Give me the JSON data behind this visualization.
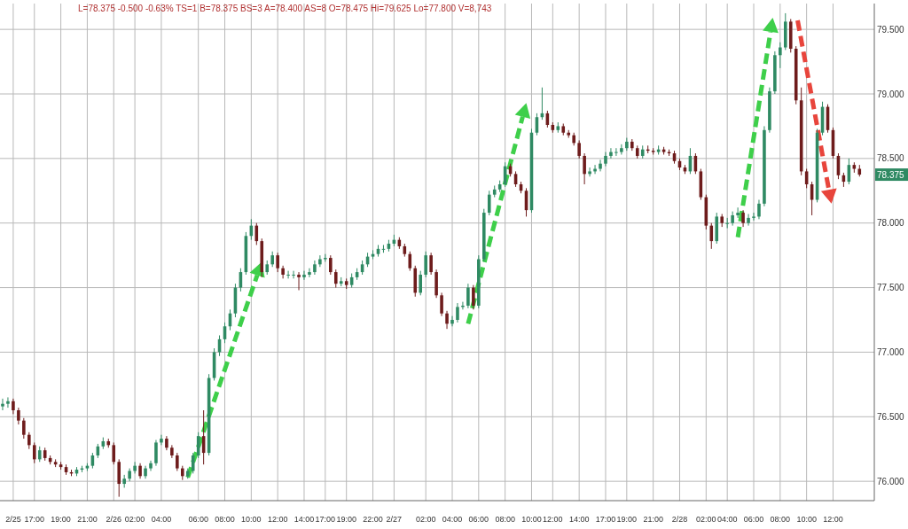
{
  "chart_data": {
    "type": "candlestick",
    "categories": [
      null,
      null,
      "2/25",
      null,
      null,
      null,
      "17:00",
      null,
      null,
      null,
      null,
      "19:00",
      null,
      null,
      null,
      null,
      "21:00",
      null,
      null,
      null,
      null,
      "2/26",
      null,
      null,
      null,
      "02:00",
      null,
      null,
      null,
      null,
      "04:00",
      null,
      null,
      null,
      null,
      null,
      null,
      "06:00",
      null,
      null,
      null,
      null,
      "08:00",
      null,
      null,
      null,
      null,
      "10:00",
      null,
      null,
      null,
      null,
      "12:00",
      null,
      null,
      null,
      null,
      "14:00",
      null,
      null,
      null,
      "17:00",
      null,
      null,
      null,
      "19:00",
      null,
      null,
      null,
      null,
      "22:00",
      null,
      null,
      null,
      "2/27",
      null,
      null,
      null,
      null,
      null,
      "02:00",
      null,
      null,
      null,
      null,
      "04:00",
      null,
      null,
      null,
      null,
      "06:00",
      null,
      null,
      null,
      null,
      "08:00",
      null,
      null,
      null,
      null,
      "10:00",
      null,
      null,
      null,
      "12:00",
      null,
      null,
      null,
      null,
      "14:00",
      null,
      null,
      null,
      null,
      "17:00",
      null,
      null,
      null,
      "19:00",
      null,
      null,
      null,
      null,
      "21:00",
      null,
      null,
      null,
      null,
      "2/28",
      null,
      null,
      null,
      null,
      "02:00",
      null,
      null,
      null,
      "04:00",
      null,
      null,
      null,
      null,
      "06:00",
      null,
      null,
      null,
      null,
      "08:00",
      null,
      null,
      null,
      null,
      "10:00",
      null,
      null,
      null,
      null,
      "12:00",
      null,
      null,
      null,
      null,
      null
    ],
    "ohlc": [
      [
        76.58,
        76.64,
        76.55,
        76.6
      ],
      [
        76.6,
        76.65,
        76.57,
        76.62
      ],
      [
        76.62,
        76.64,
        76.52,
        76.55
      ],
      [
        76.55,
        76.57,
        76.44,
        76.47
      ],
      [
        76.47,
        76.49,
        76.33,
        76.36
      ],
      [
        76.36,
        76.38,
        76.25,
        76.28
      ],
      [
        76.28,
        76.3,
        76.14,
        76.17
      ],
      [
        76.17,
        76.27,
        76.15,
        76.24
      ],
      [
        76.24,
        76.26,
        76.16,
        76.18
      ],
      [
        76.18,
        76.2,
        76.13,
        76.15
      ],
      [
        76.15,
        76.17,
        76.11,
        76.13
      ],
      [
        76.13,
        76.15,
        76.09,
        76.11
      ],
      [
        76.11,
        76.13,
        76.05,
        76.07
      ],
      [
        76.07,
        76.09,
        76.04,
        76.06
      ],
      [
        76.06,
        76.11,
        76.04,
        76.09
      ],
      [
        76.09,
        76.12,
        76.07,
        76.1
      ],
      [
        76.1,
        76.14,
        76.08,
        76.12
      ],
      [
        76.12,
        76.22,
        76.1,
        76.2
      ],
      [
        76.2,
        76.29,
        76.18,
        76.27
      ],
      [
        76.27,
        76.34,
        76.25,
        76.31
      ],
      [
        76.31,
        76.33,
        76.26,
        76.28
      ],
      [
        76.28,
        76.3,
        76.13,
        76.15
      ],
      [
        76.15,
        76.17,
        75.88,
        75.98
      ],
      [
        75.98,
        76.05,
        75.95,
        76.02
      ],
      [
        76.02,
        76.1,
        76.0,
        76.08
      ],
      [
        76.08,
        76.15,
        76.06,
        76.12
      ],
      [
        76.12,
        76.14,
        76.02,
        76.04
      ],
      [
        76.04,
        76.12,
        76.02,
        76.1
      ],
      [
        76.1,
        76.16,
        76.08,
        76.14
      ],
      [
        76.14,
        76.32,
        76.12,
        76.3
      ],
      [
        76.3,
        76.36,
        76.28,
        76.33
      ],
      [
        76.33,
        76.35,
        76.24,
        76.26
      ],
      [
        76.26,
        76.28,
        76.18,
        76.2
      ],
      [
        76.2,
        76.22,
        76.08,
        76.1
      ],
      [
        76.1,
        76.12,
        76.01,
        76.04
      ],
      [
        76.04,
        76.1,
        76.02,
        76.08
      ],
      [
        76.08,
        76.22,
        76.06,
        76.2
      ],
      [
        76.2,
        76.38,
        76.18,
        76.35
      ],
      [
        76.35,
        76.55,
        76.13,
        76.22
      ],
      [
        76.22,
        76.83,
        76.2,
        76.8
      ],
      [
        76.8,
        77.03,
        76.78,
        77.0
      ],
      [
        77.0,
        77.13,
        76.97,
        77.1
      ],
      [
        77.1,
        77.23,
        77.07,
        77.2
      ],
      [
        77.2,
        77.33,
        77.17,
        77.3
      ],
      [
        77.3,
        77.53,
        77.27,
        77.5
      ],
      [
        77.5,
        77.65,
        77.47,
        77.62
      ],
      [
        77.62,
        77.93,
        77.6,
        77.9
      ],
      [
        77.9,
        78.03,
        77.87,
        77.98
      ],
      [
        77.98,
        78.0,
        77.83,
        77.86
      ],
      [
        77.86,
        77.88,
        77.58,
        77.62
      ],
      [
        77.62,
        77.71,
        77.6,
        77.68
      ],
      [
        77.68,
        77.78,
        77.66,
        77.75
      ],
      [
        77.75,
        77.77,
        77.62,
        77.65
      ],
      [
        77.65,
        77.67,
        77.57,
        77.6
      ],
      [
        77.6,
        77.63,
        77.57,
        77.6
      ],
      [
        77.6,
        77.63,
        77.57,
        77.6
      ],
      [
        77.6,
        77.62,
        77.48,
        77.58
      ],
      [
        77.58,
        77.63,
        77.56,
        77.6
      ],
      [
        77.6,
        77.65,
        77.58,
        77.62
      ],
      [
        77.62,
        77.71,
        77.6,
        77.68
      ],
      [
        77.68,
        77.75,
        77.66,
        77.72
      ],
      [
        77.72,
        77.76,
        77.7,
        77.73
      ],
      [
        77.73,
        77.75,
        77.6,
        77.62
      ],
      [
        77.62,
        77.64,
        77.5,
        77.53
      ],
      [
        77.53,
        77.58,
        77.51,
        77.55
      ],
      [
        77.55,
        77.57,
        77.49,
        77.52
      ],
      [
        77.52,
        77.61,
        77.5,
        77.58
      ],
      [
        77.58,
        77.65,
        77.56,
        77.62
      ],
      [
        77.62,
        77.71,
        77.6,
        77.68
      ],
      [
        77.68,
        77.77,
        77.66,
        77.74
      ],
      [
        77.74,
        77.79,
        77.72,
        77.76
      ],
      [
        77.76,
        77.83,
        77.74,
        77.8
      ],
      [
        77.8,
        77.83,
        77.77,
        77.8
      ],
      [
        77.8,
        77.87,
        77.78,
        77.84
      ],
      [
        77.84,
        77.91,
        77.82,
        77.87
      ],
      [
        77.87,
        77.89,
        77.8,
        77.82
      ],
      [
        77.82,
        77.84,
        77.74,
        77.76
      ],
      [
        77.76,
        77.78,
        77.63,
        77.65
      ],
      [
        77.65,
        77.67,
        77.43,
        77.46
      ],
      [
        77.46,
        77.63,
        77.44,
        77.6
      ],
      [
        77.6,
        77.78,
        77.58,
        77.75
      ],
      [
        77.75,
        77.77,
        77.6,
        77.62
      ],
      [
        77.62,
        77.64,
        77.42,
        77.44
      ],
      [
        77.44,
        77.46,
        77.28,
        77.3
      ],
      [
        77.3,
        77.32,
        77.18,
        77.22
      ],
      [
        77.22,
        77.28,
        77.2,
        77.25
      ],
      [
        77.25,
        77.38,
        77.23,
        77.35
      ],
      [
        77.35,
        77.39,
        77.33,
        77.36
      ],
      [
        77.36,
        77.53,
        77.34,
        77.5
      ],
      [
        77.5,
        77.52,
        77.33,
        77.36
      ],
      [
        77.36,
        77.75,
        77.34,
        77.72
      ],
      [
        77.72,
        78.11,
        77.7,
        78.08
      ],
      [
        78.08,
        78.25,
        78.06,
        78.22
      ],
      [
        78.22,
        78.29,
        78.2,
        78.26
      ],
      [
        78.26,
        78.33,
        78.24,
        78.3
      ],
      [
        78.3,
        78.47,
        78.28,
        78.44
      ],
      [
        78.44,
        78.46,
        78.36,
        78.38
      ],
      [
        78.38,
        78.4,
        78.28,
        78.3
      ],
      [
        78.3,
        78.32,
        78.23,
        78.25
      ],
      [
        78.25,
        78.27,
        78.05,
        78.1
      ],
      [
        78.1,
        78.73,
        78.08,
        78.7
      ],
      [
        78.7,
        78.85,
        78.68,
        78.82
      ],
      [
        78.82,
        79.05,
        78.8,
        78.85
      ],
      [
        78.85,
        78.87,
        78.74,
        78.76
      ],
      [
        78.76,
        78.78,
        78.7,
        78.72
      ],
      [
        78.72,
        78.78,
        78.7,
        78.75
      ],
      [
        78.75,
        78.77,
        78.68,
        78.7
      ],
      [
        78.7,
        78.72,
        78.66,
        78.68
      ],
      [
        78.68,
        78.7,
        78.6,
        78.62
      ],
      [
        78.62,
        78.64,
        78.5,
        78.52
      ],
      [
        78.52,
        78.54,
        78.3,
        78.38
      ],
      [
        78.38,
        78.43,
        78.36,
        78.4
      ],
      [
        78.4,
        78.45,
        78.38,
        78.42
      ],
      [
        78.42,
        78.49,
        78.4,
        78.46
      ],
      [
        78.46,
        78.55,
        78.44,
        78.52
      ],
      [
        78.52,
        78.58,
        78.5,
        78.55
      ],
      [
        78.55,
        78.58,
        78.52,
        78.55
      ],
      [
        78.55,
        78.61,
        78.53,
        78.58
      ],
      [
        78.58,
        78.66,
        78.56,
        78.63
      ],
      [
        78.63,
        78.65,
        78.56,
        78.58
      ],
      [
        78.58,
        78.6,
        78.5,
        78.52
      ],
      [
        78.52,
        78.6,
        78.5,
        78.57
      ],
      [
        78.57,
        78.6,
        78.54,
        78.56
      ],
      [
        78.56,
        78.58,
        78.53,
        78.55
      ],
      [
        78.55,
        78.6,
        78.53,
        78.57
      ],
      [
        78.57,
        78.59,
        78.53,
        78.55
      ],
      [
        78.55,
        78.57,
        78.52,
        78.54
      ],
      [
        78.54,
        78.56,
        78.46,
        78.48
      ],
      [
        78.48,
        78.5,
        78.41,
        78.43
      ],
      [
        78.43,
        78.45,
        78.38,
        78.4
      ],
      [
        78.4,
        78.58,
        78.38,
        78.52
      ],
      [
        78.52,
        78.54,
        78.38,
        78.4
      ],
      [
        78.4,
        78.42,
        78.18,
        78.2
      ],
      [
        78.2,
        78.22,
        77.95,
        77.98
      ],
      [
        77.98,
        78.0,
        77.8,
        77.86
      ],
      [
        77.86,
        78.08,
        77.84,
        78.05
      ],
      [
        78.05,
        78.07,
        77.97,
        78.0
      ],
      [
        78.0,
        78.04,
        77.96,
        78.0
      ],
      [
        78.0,
        78.09,
        77.98,
        78.06
      ],
      [
        78.06,
        78.12,
        78.04,
        78.08
      ],
      [
        78.08,
        78.1,
        77.97,
        78.0
      ],
      [
        78.0,
        78.07,
        77.98,
        78.04
      ],
      [
        78.04,
        78.08,
        78.02,
        78.05
      ],
      [
        78.05,
        78.18,
        78.03,
        78.15
      ],
      [
        78.15,
        78.75,
        78.13,
        78.72
      ],
      [
        78.72,
        79.05,
        78.7,
        79.02
      ],
      [
        79.02,
        79.33,
        79.0,
        79.3
      ],
      [
        79.3,
        79.4,
        79.2,
        79.36
      ],
      [
        79.36,
        79.625,
        79.34,
        79.56
      ],
      [
        79.56,
        79.58,
        79.32,
        79.35
      ],
      [
        79.35,
        79.37,
        78.92,
        78.95
      ],
      [
        78.95,
        79.05,
        78.37,
        78.4
      ],
      [
        78.4,
        78.42,
        78.27,
        78.3
      ],
      [
        78.3,
        78.32,
        78.06,
        78.18
      ],
      [
        78.18,
        78.73,
        78.16,
        78.7
      ],
      [
        78.7,
        78.94,
        78.68,
        78.9
      ],
      [
        78.9,
        78.92,
        78.7,
        78.72
      ],
      [
        78.72,
        78.74,
        78.5,
        78.52
      ],
      [
        78.52,
        78.54,
        78.34,
        78.37
      ],
      [
        78.37,
        78.39,
        78.28,
        78.32
      ],
      [
        78.32,
        78.5,
        78.3,
        78.45
      ],
      [
        78.45,
        78.47,
        78.39,
        78.42
      ],
      [
        78.42,
        78.45,
        78.36,
        78.375
      ]
    ],
    "ylim": [
      75.85,
      79.7
    ],
    "yticks": [
      {
        "value": 76,
        "label": "76.000"
      },
      {
        "value": 76.5,
        "label": "76.500"
      },
      {
        "value": 77,
        "label": "77.000"
      },
      {
        "value": 77.5,
        "label": "77.500"
      },
      {
        "value": 78,
        "label": "78.000"
      },
      {
        "value": 78.5,
        "label": "78.500"
      },
      {
        "value": 79,
        "label": "79.000"
      },
      {
        "value": 79.5,
        "label": "79.500"
      }
    ],
    "grid": true,
    "annotations": [
      "L=78.375 -0.500 -0.63% TS=1 B=78.375 BS=3 A=78.400 AS=8 O=78.475 Hi=79.625 Lo=77.800 V=8,743",
      "78.375"
    ]
  }
}
